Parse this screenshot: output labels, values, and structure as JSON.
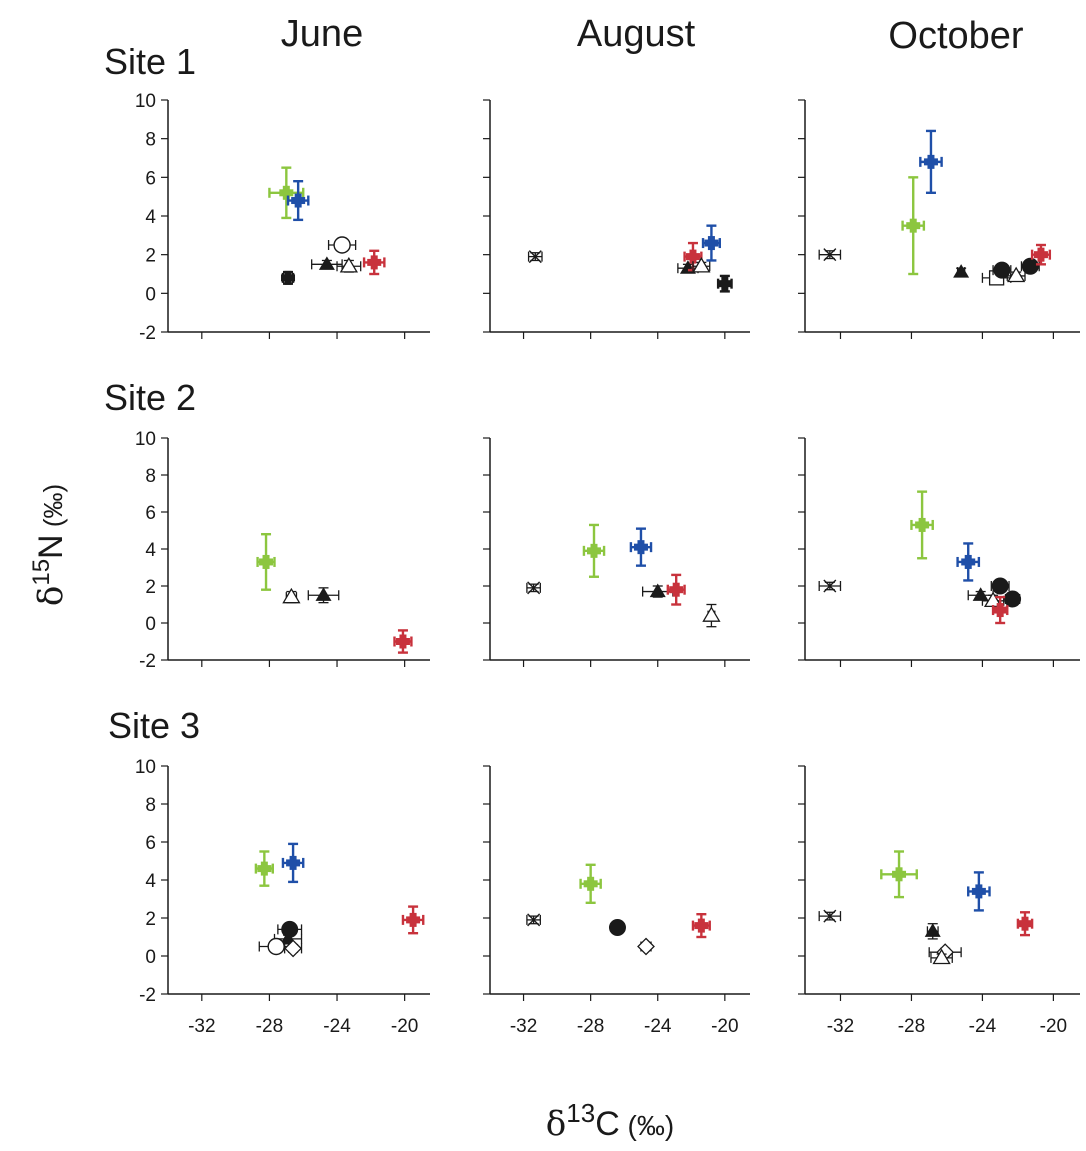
{
  "colors": {
    "green": "#8cc63f",
    "blue": "#1f4fa8",
    "red": "#c8323c",
    "black": "#1a1a1a"
  },
  "column_titles": [
    "June",
    "August",
    "October"
  ],
  "row_titles": [
    "Site 1",
    "Site 2",
    "Site 3"
  ],
  "y_axis_label": "δ15N (‰)",
  "x_axis_label": "δ13C (‰)",
  "chart_data": {
    "type": "scatter",
    "xlabel": "δ13C (‰)",
    "ylabel": "δ15N (‰)",
    "xlim": [
      -34,
      -18.5
    ],
    "ylim": [
      -2,
      10
    ],
    "x_ticks": [
      -32,
      -28,
      -24,
      -20
    ],
    "y_ticks": [
      -2,
      0,
      2,
      4,
      6,
      8,
      10
    ],
    "error_bars": true,
    "panels": [
      {
        "site": "Site 1",
        "month": "June",
        "points": [
          {
            "marker": "plus",
            "color": "green",
            "x": -27.0,
            "y": 5.2,
            "xerr": 1.0,
            "yerr": 1.3
          },
          {
            "marker": "plus",
            "color": "blue",
            "x": -26.3,
            "y": 4.8,
            "xerr": 0.6,
            "yerr": 1.0
          },
          {
            "marker": "plus",
            "color": "black",
            "x": -26.9,
            "y": 0.8,
            "xerr": 0.3,
            "yerr": 0.3
          },
          {
            "marker": "triangle_filled",
            "color": "black",
            "x": -24.6,
            "y": 1.5,
            "xerr": 0.9,
            "yerr": 0.2
          },
          {
            "marker": "circle_open",
            "color": "black",
            "x": -23.7,
            "y": 2.5,
            "xerr": 0.8,
            "yerr": 0.3
          },
          {
            "marker": "triangle_open",
            "color": "black",
            "x": -23.3,
            "y": 1.4,
            "xerr": 0.7,
            "yerr": 0.3
          },
          {
            "marker": "plus",
            "color": "red",
            "x": -21.8,
            "y": 1.6,
            "xerr": 0.6,
            "yerr": 0.6
          }
        ]
      },
      {
        "site": "Site 1",
        "month": "August",
        "points": [
          {
            "marker": "cross",
            "color": "black",
            "x": -31.3,
            "y": 1.9,
            "xerr": 0.4,
            "yerr": 0.2
          },
          {
            "marker": "triangle_filled",
            "color": "black",
            "x": -22.2,
            "y": 1.3,
            "xerr": 0.6,
            "yerr": 0.2
          },
          {
            "marker": "plus",
            "color": "red",
            "x": -21.9,
            "y": 1.9,
            "xerr": 0.5,
            "yerr": 0.7
          },
          {
            "marker": "triangle_open",
            "color": "black",
            "x": -21.4,
            "y": 1.4,
            "xerr": 0.5,
            "yerr": 0.2
          },
          {
            "marker": "plus",
            "color": "blue",
            "x": -20.8,
            "y": 2.6,
            "xerr": 0.5,
            "yerr": 0.9
          },
          {
            "marker": "plus",
            "color": "black",
            "x": -20.0,
            "y": 0.5,
            "xerr": 0.4,
            "yerr": 0.4
          }
        ]
      },
      {
        "site": "Site 1",
        "month": "October",
        "points": [
          {
            "marker": "cross",
            "color": "black",
            "x": -32.6,
            "y": 2.0,
            "xerr": 0.6,
            "yerr": 0.2
          },
          {
            "marker": "plus",
            "color": "green",
            "x": -27.9,
            "y": 3.5,
            "xerr": 0.6,
            "yerr": 2.5
          },
          {
            "marker": "plus",
            "color": "blue",
            "x": -26.9,
            "y": 6.8,
            "xerr": 0.6,
            "yerr": 1.6
          },
          {
            "marker": "triangle_filled",
            "color": "black",
            "x": -25.2,
            "y": 1.1,
            "xerr": 0.2,
            "yerr": 0.2
          },
          {
            "marker": "square_open",
            "color": "black",
            "x": -23.2,
            "y": 0.8,
            "xerr": 0.8,
            "yerr": 0.2
          },
          {
            "marker": "circle_filled",
            "color": "black",
            "x": -22.9,
            "y": 1.2,
            "xerr": 0.5,
            "yerr": 0.2
          },
          {
            "marker": "triangle_open",
            "color": "black",
            "x": -22.1,
            "y": 0.9,
            "xerr": 0.5,
            "yerr": 0.2
          },
          {
            "marker": "circle_filled",
            "color": "black",
            "x": -21.3,
            "y": 1.4,
            "xerr": 0.5,
            "yerr": 0.3
          },
          {
            "marker": "plus",
            "color": "red",
            "x": -20.7,
            "y": 2.0,
            "xerr": 0.5,
            "yerr": 0.5
          }
        ]
      },
      {
        "site": "Site 2",
        "month": "June",
        "points": [
          {
            "marker": "plus",
            "color": "green",
            "x": -28.2,
            "y": 3.3,
            "xerr": 0.5,
            "yerr": 1.5
          },
          {
            "marker": "triangle_open",
            "color": "black",
            "x": -26.7,
            "y": 1.4,
            "xerr": 0.3,
            "yerr": 0.3
          },
          {
            "marker": "triangle_filled",
            "color": "black",
            "x": -24.8,
            "y": 1.5,
            "xerr": 0.9,
            "yerr": 0.4
          },
          {
            "marker": "plus",
            "color": "red",
            "x": -20.1,
            "y": -1.0,
            "xerr": 0.5,
            "yerr": 0.6
          }
        ]
      },
      {
        "site": "Site 2",
        "month": "August",
        "points": [
          {
            "marker": "cross",
            "color": "black",
            "x": -31.4,
            "y": 1.9,
            "xerr": 0.4,
            "yerr": 0.2
          },
          {
            "marker": "plus",
            "color": "green",
            "x": -27.8,
            "y": 3.9,
            "xerr": 0.6,
            "yerr": 1.4
          },
          {
            "marker": "plus",
            "color": "blue",
            "x": -25.0,
            "y": 4.1,
            "xerr": 0.6,
            "yerr": 1.0
          },
          {
            "marker": "triangle_filled",
            "color": "black",
            "x": -24.0,
            "y": 1.7,
            "xerr": 0.9,
            "yerr": 0.3
          },
          {
            "marker": "plus",
            "color": "red",
            "x": -22.9,
            "y": 1.8,
            "xerr": 0.5,
            "yerr": 0.8
          },
          {
            "marker": "triangle_open",
            "color": "black",
            "x": -20.8,
            "y": 0.4,
            "xerr": 0.2,
            "yerr": 0.6
          }
        ]
      },
      {
        "site": "Site 2",
        "month": "October",
        "points": [
          {
            "marker": "cross",
            "color": "black",
            "x": -32.6,
            "y": 2.0,
            "xerr": 0.6,
            "yerr": 0.2
          },
          {
            "marker": "plus",
            "color": "green",
            "x": -27.4,
            "y": 5.3,
            "xerr": 0.6,
            "yerr": 1.8
          },
          {
            "marker": "plus",
            "color": "blue",
            "x": -24.8,
            "y": 3.3,
            "xerr": 0.6,
            "yerr": 1.0
          },
          {
            "marker": "triangle_filled",
            "color": "black",
            "x": -24.1,
            "y": 1.5,
            "xerr": 0.7,
            "yerr": 0.2
          },
          {
            "marker": "circle_filled",
            "color": "black",
            "x": -23.0,
            "y": 2.0,
            "xerr": 0.5,
            "yerr": 0.3
          },
          {
            "marker": "triangle_open",
            "color": "black",
            "x": -23.4,
            "y": 1.2,
            "xerr": 0.6,
            "yerr": 0.3
          },
          {
            "marker": "circle_filled",
            "color": "black",
            "x": -22.3,
            "y": 1.3,
            "xerr": 0.4,
            "yerr": 0.3
          },
          {
            "marker": "plus",
            "color": "red",
            "x": -23.0,
            "y": 0.7,
            "xerr": 0.4,
            "yerr": 0.7
          }
        ]
      },
      {
        "site": "Site 3",
        "month": "June",
        "points": [
          {
            "marker": "plus",
            "color": "green",
            "x": -28.3,
            "y": 4.6,
            "xerr": 0.5,
            "yerr": 0.9
          },
          {
            "marker": "plus",
            "color": "blue",
            "x": -26.6,
            "y": 4.9,
            "xerr": 0.6,
            "yerr": 1.0
          },
          {
            "marker": "circle_filled",
            "color": "black",
            "x": -26.8,
            "y": 1.4,
            "xerr": 0.7,
            "yerr": 0.2
          },
          {
            "marker": "triangle_filled",
            "color": "black",
            "x": -26.9,
            "y": 0.9,
            "xerr": 0.8,
            "yerr": 0.2
          },
          {
            "marker": "circle_open",
            "color": "black",
            "x": -27.6,
            "y": 0.5,
            "xerr": 1.0,
            "yerr": 0.2
          },
          {
            "marker": "diamond_open",
            "color": "black",
            "x": -26.6,
            "y": 0.4,
            "xerr": 0.5,
            "yerr": 0.2
          },
          {
            "marker": "plus",
            "color": "red",
            "x": -19.5,
            "y": 1.9,
            "xerr": 0.6,
            "yerr": 0.7
          }
        ]
      },
      {
        "site": "Site 3",
        "month": "August",
        "points": [
          {
            "marker": "cross",
            "color": "black",
            "x": -31.4,
            "y": 1.9,
            "xerr": 0.4,
            "yerr": 0.2
          },
          {
            "marker": "plus",
            "color": "green",
            "x": -28.0,
            "y": 3.8,
            "xerr": 0.6,
            "yerr": 1.0
          },
          {
            "marker": "circle_filled",
            "color": "black",
            "x": -26.4,
            "y": 1.5,
            "xerr": 0.3,
            "yerr": 0.2
          },
          {
            "marker": "diamond_open",
            "color": "black",
            "x": -24.7,
            "y": 0.5,
            "xerr": 0.3,
            "yerr": 0.2
          },
          {
            "marker": "plus",
            "color": "red",
            "x": -21.4,
            "y": 1.6,
            "xerr": 0.5,
            "yerr": 0.6
          }
        ]
      },
      {
        "site": "Site 3",
        "month": "October",
        "points": [
          {
            "marker": "cross",
            "color": "black",
            "x": -32.6,
            "y": 2.1,
            "xerr": 0.6,
            "yerr": 0.2
          },
          {
            "marker": "plus",
            "color": "green",
            "x": -28.7,
            "y": 4.3,
            "xerr": 1.0,
            "yerr": 1.2
          },
          {
            "marker": "triangle_filled",
            "color": "black",
            "x": -26.8,
            "y": 1.3,
            "xerr": 0.3,
            "yerr": 0.4
          },
          {
            "marker": "plus",
            "color": "blue",
            "x": -24.2,
            "y": 3.4,
            "xerr": 0.6,
            "yerr": 1.0
          },
          {
            "marker": "diamond_open",
            "color": "black",
            "x": -26.1,
            "y": 0.2,
            "xerr": 0.9,
            "yerr": 0.2
          },
          {
            "marker": "triangle_open",
            "color": "black",
            "x": -26.3,
            "y": -0.1,
            "xerr": 0.6,
            "yerr": 0.2
          },
          {
            "marker": "plus",
            "color": "red",
            "x": -21.6,
            "y": 1.7,
            "xerr": 0.4,
            "yerr": 0.6
          }
        ]
      }
    ]
  }
}
